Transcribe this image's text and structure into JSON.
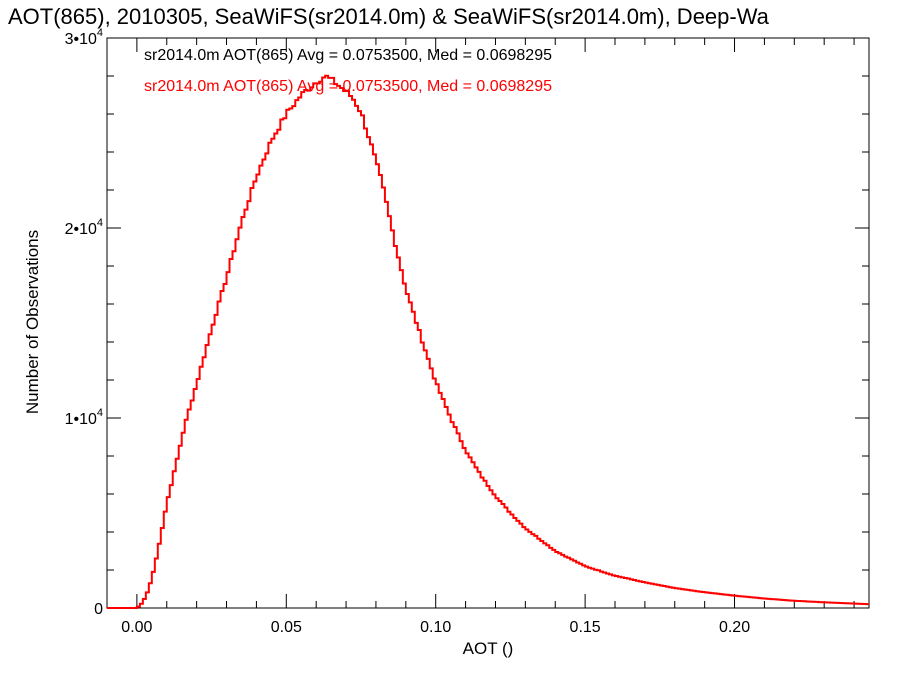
{
  "chart_data": {
    "type": "line",
    "step": true,
    "title": "AOT(865), 2010305, SeaWiFS(sr2014.0m) & SeaWiFS(sr2014.0m), Deep-Wa",
    "xlabel": "AOT ()",
    "ylabel": "Number of Observations",
    "xlim": [
      -0.01,
      0.245
    ],
    "ylim": [
      0,
      30000
    ],
    "xticks": [
      {
        "value": 0.0,
        "label": "0.00"
      },
      {
        "value": 0.05,
        "label": "0.05"
      },
      {
        "value": 0.1,
        "label": "0.10"
      },
      {
        "value": 0.15,
        "label": "0.15"
      },
      {
        "value": 0.2,
        "label": "0.20"
      }
    ],
    "yticks": [
      {
        "value": 0,
        "label": "0",
        "exp": ""
      },
      {
        "value": 10000,
        "label": "1•10",
        "exp": "4"
      },
      {
        "value": 20000,
        "label": "2•10",
        "exp": "4"
      },
      {
        "value": 30000,
        "label": "3•10",
        "exp": "4"
      }
    ],
    "annotations": [
      {
        "text": "sr2014.0m AOT(865) Avg = 0.0753500, Med = 0.0698295",
        "color": "#000000"
      },
      {
        "text": "sr2014.0m AOT(865) Avg = 0.0753500, Med = 0.0698295",
        "color": "#ff0000"
      }
    ],
    "series": [
      {
        "color": "#ff0000",
        "x": [
          -0.01,
          0.0,
          0.002,
          0.004,
          0.006,
          0.008,
          0.01,
          0.013,
          0.016,
          0.02,
          0.025,
          0.03,
          0.035,
          0.04,
          0.045,
          0.05,
          0.055,
          0.06,
          0.063,
          0.066,
          0.069,
          0.072,
          0.075,
          0.078,
          0.082,
          0.086,
          0.09,
          0.095,
          0.1,
          0.105,
          0.11,
          0.115,
          0.12,
          0.125,
          0.13,
          0.135,
          0.14,
          0.145,
          0.15,
          0.16,
          0.17,
          0.18,
          0.19,
          0.2,
          0.21,
          0.22,
          0.23,
          0.245
        ],
        "y": [
          0,
          0,
          300,
          1000,
          2200,
          3800,
          5500,
          7500,
          9600,
          11800,
          14700,
          17400,
          20300,
          22700,
          24600,
          26000,
          27000,
          27700,
          28000,
          27700,
          27300,
          26900,
          26100,
          24600,
          22400,
          19500,
          16800,
          14300,
          11900,
          10000,
          8300,
          7000,
          5900,
          5000,
          4200,
          3600,
          3000,
          2600,
          2200,
          1700,
          1350,
          1050,
          830,
          650,
          500,
          380,
          300,
          200
        ]
      }
    ]
  }
}
